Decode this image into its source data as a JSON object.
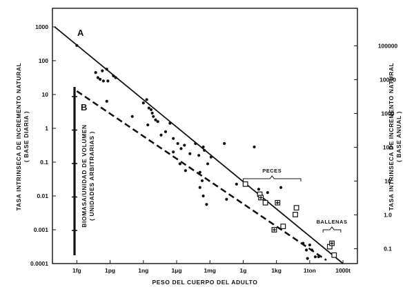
{
  "chart_data": {
    "type": "scatter",
    "title": "",
    "xlabel": "PESO DEL CUERPO DEL ADULTO",
    "ylabel_left": [
      "TASA INTRINSECA DE INCREMENTO NATURAL",
      "( BASE DIARIA )"
    ],
    "ylabel_right": [
      "TASA INTRINSECA DE INCREMENTO NATURAL",
      "( BASE ANUAL )"
    ],
    "scale_label": [
      "BIOMASA/UNIDAD DE VOLUMEN",
      "( UNIDADES ARBITRARIAS )"
    ],
    "x_scale": "log10 grams",
    "x_ticks": [
      {
        "exp": -15,
        "label": "1fg"
      },
      {
        "exp": -12,
        "label": "1pg"
      },
      {
        "exp": -9,
        "label": "1ng"
      },
      {
        "exp": -6,
        "label": "1μg"
      },
      {
        "exp": -3,
        "label": "1mg"
      },
      {
        "exp": 0,
        "label": "1g"
      },
      {
        "exp": 3,
        "label": "1kg"
      },
      {
        "exp": 6,
        "label": "1ton"
      },
      {
        "exp": 9,
        "label": "1000t"
      }
    ],
    "y_left_range_exp": [
      -4,
      3
    ],
    "y_left_ticks": [
      {
        "exp": 3,
        "label": "1000"
      },
      {
        "exp": 2,
        "label": "100"
      },
      {
        "exp": 1,
        "label": "10"
      },
      {
        "exp": 0,
        "label": "1"
      },
      {
        "exp": -1,
        "label": "0.1"
      },
      {
        "exp": -2,
        "label": "0.01"
      },
      {
        "exp": -3,
        "label": "0.001"
      },
      {
        "exp": -4,
        "label": "0.0001"
      }
    ],
    "y_right_ticks": [
      {
        "exp": 5,
        "label": "100000"
      },
      {
        "exp": 4,
        "label": "10000"
      },
      {
        "exp": 3,
        "label": "1000"
      },
      {
        "exp": 2,
        "label": "100"
      },
      {
        "exp": 1,
        "label": "10"
      },
      {
        "exp": 0,
        "label": "1.0"
      },
      {
        "exp": -1,
        "label": "0.1"
      }
    ],
    "lines": [
      {
        "name": "A",
        "style": "solid",
        "from": [
          -17,
          3
        ],
        "to": [
          9,
          -4
        ]
      },
      {
        "name": "B",
        "style": "dashed",
        "from": [
          -15,
          1.1
        ],
        "to": [
          7.5,
          -3.9
        ]
      }
    ],
    "annotations": [
      {
        "text": "PECES",
        "bracket_exp": [
          0,
          5.2
        ]
      },
      {
        "text": "BALLENAS",
        "bracket_exp": [
          7.2,
          8.8
        ]
      }
    ],
    "scale_bar_ticks": 5,
    "dots": [
      [
        -15,
        2.45
      ],
      [
        -13.3,
        1.65
      ],
      [
        -13.1,
        1.5
      ],
      [
        -12.9,
        1.45
      ],
      [
        -12.7,
        1.7
      ],
      [
        -12.6,
        1.4
      ],
      [
        -12.3,
        1.75
      ],
      [
        -12.2,
        1.4
      ],
      [
        -11.7,
        1.55
      ],
      [
        -11.5,
        1.5
      ],
      [
        -12.3,
        0.8
      ],
      [
        -10.0,
        0.35
      ],
      [
        -9.0,
        0.75
      ],
      [
        -8.7,
        0.85
      ],
      [
        -8.5,
        0.6
      ],
      [
        -8.3,
        0.55
      ],
      [
        -8.2,
        0.45
      ],
      [
        -8.1,
        0.35
      ],
      [
        -7.9,
        0.25
      ],
      [
        -7.7,
        0.2
      ],
      [
        -8.6,
        0.1
      ],
      [
        -7.4,
        -0.2
      ],
      [
        -7.0,
        -0.1
      ],
      [
        -6.6,
        0.15
      ],
      [
        -6.3,
        -0.3
      ],
      [
        -5.9,
        -0.45
      ],
      [
        -5.6,
        -0.6
      ],
      [
        -5.3,
        -0.5
      ],
      [
        -6.3,
        -0.7
      ],
      [
        -5.7,
        -1.05
      ],
      [
        -5.2,
        -1.25
      ],
      [
        -4.8,
        -0.75
      ],
      [
        -4.3,
        -0.45
      ],
      [
        -4.0,
        -0.8
      ],
      [
        -3.6,
        -0.55
      ],
      [
        -3.5,
        -0.65
      ],
      [
        -3.2,
        -1.05
      ],
      [
        -2.9,
        -0.85
      ],
      [
        -1.7,
        -0.45
      ],
      [
        -3.9,
        -1.3
      ],
      [
        -3.7,
        -1.55
      ],
      [
        -3.9,
        -1.75
      ],
      [
        -3.6,
        -2.0
      ],
      [
        -3.3,
        -2.25
      ],
      [
        -1.5,
        -2.1
      ],
      [
        -0.6,
        -1.65
      ],
      [
        1.0,
        -0.55
      ],
      [
        1.4,
        -1.8
      ],
      [
        2.2,
        -1.9
      ],
      [
        3.4,
        -1.75
      ],
      [
        5.4,
        -3.4
      ],
      [
        6.0,
        -3.45
      ],
      [
        6.2,
        -3.6
      ],
      [
        5.7,
        -3.6
      ],
      [
        6.5,
        -3.8
      ],
      [
        6.8,
        -3.8
      ],
      [
        5.8,
        -3.85
      ]
    ],
    "squares": [
      [
        0.2,
        -1.65
      ],
      [
        1.5,
        -1.95
      ],
      [
        2.0,
        -2.2
      ],
      [
        3.6,
        -2.9
      ],
      [
        4.7,
        -2.55
      ],
      [
        4.8,
        -2.35
      ],
      [
        7.8,
        -3.5
      ],
      [
        8.2,
        -3.75
      ]
    ],
    "crossed_squares": [
      [
        1.6,
        -2.05
      ],
      [
        3.1,
        -2.2
      ],
      [
        2.8,
        -3.0
      ],
      [
        8.0,
        -3.4
      ]
    ]
  }
}
